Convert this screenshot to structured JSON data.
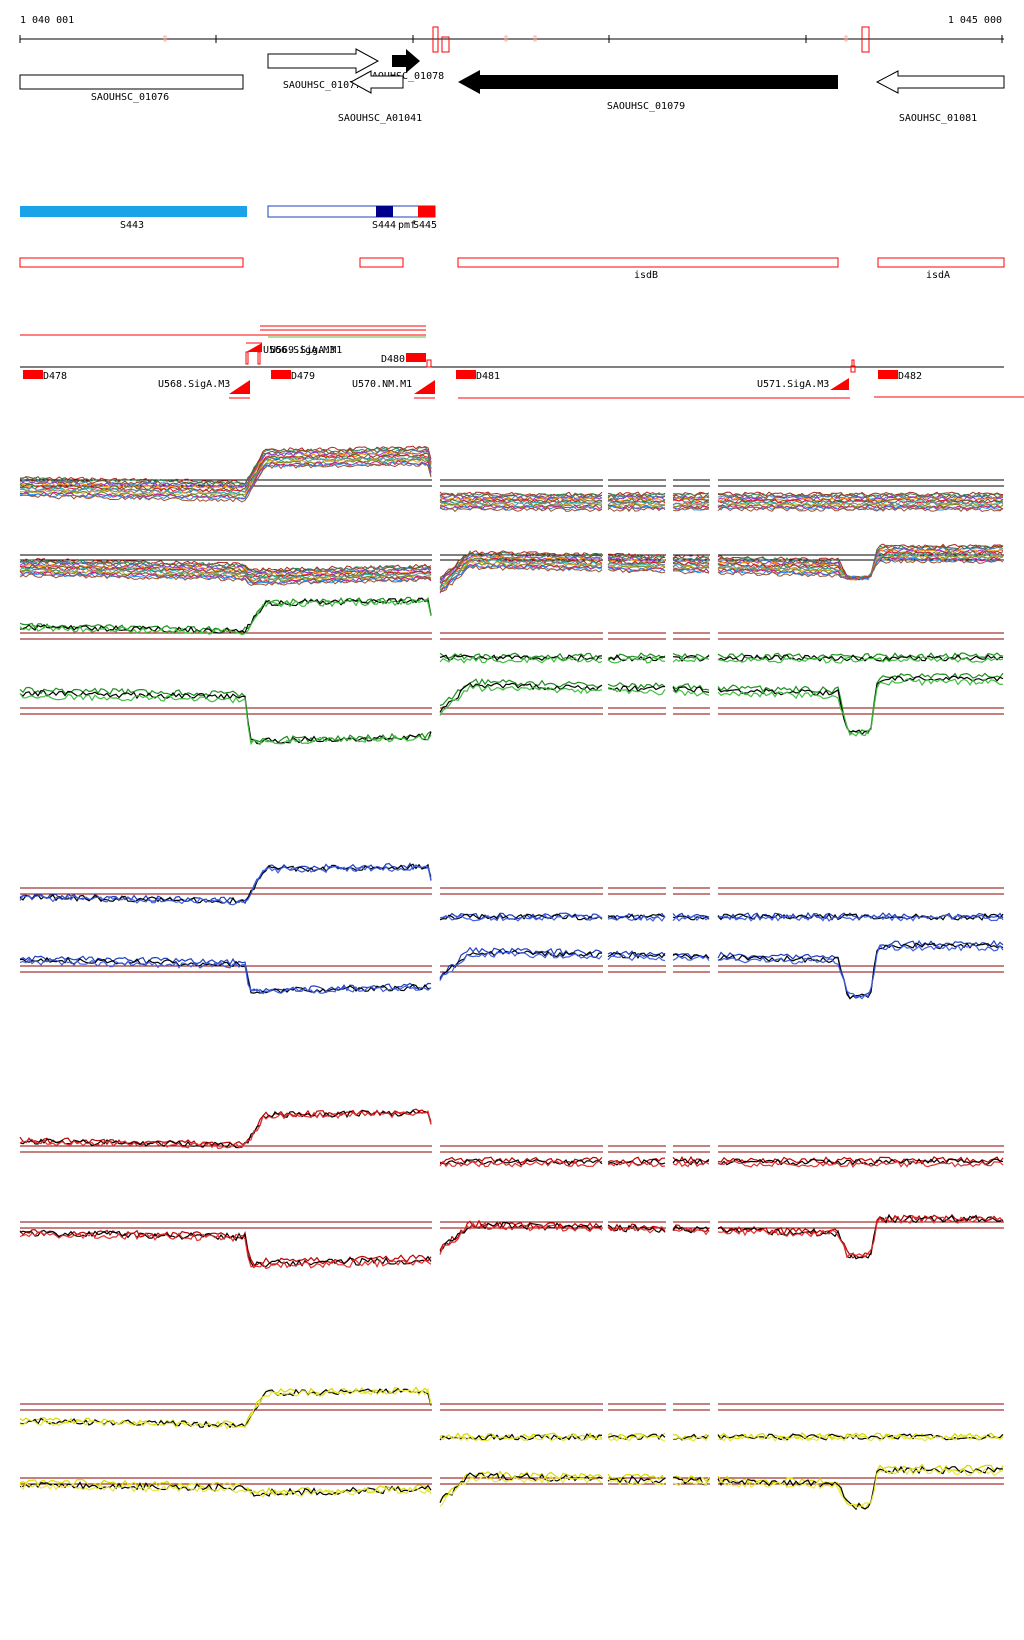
{
  "coordinates": {
    "start": "1 040 001",
    "end": "1 045 000"
  },
  "colors": {
    "gene_fill": "#000000",
    "gene_outline": "#000000",
    "segment_light": "#1aa3e8",
    "segment_dark": "#00008b",
    "segment_red": "#ff0000",
    "feature_outline": "#ff0000",
    "baseline": "#8b0000",
    "green": "#1f8f1f",
    "blue": "#1f3fbf",
    "red": "#c00000",
    "yellow": "#d8d800",
    "black": "#000000"
  },
  "genes": [
    {
      "id": "g1",
      "label": "SAOUHSC_01076",
      "strand": "none",
      "filled": false
    },
    {
      "id": "g2",
      "label": "SAOUHSC_01077",
      "strand": "+",
      "filled": false
    },
    {
      "id": "g3",
      "label": "SAOUHSC_01078",
      "strand": "+",
      "filled": true
    },
    {
      "id": "g4",
      "label": "SAOUHSC_01079",
      "strand": "-",
      "filled": true
    },
    {
      "id": "g5",
      "label": "SAOUHSC_A01041",
      "strand": "-",
      "filled": false
    },
    {
      "id": "g6",
      "label": "SAOUHSC_01081",
      "strand": "-",
      "filled": false
    }
  ],
  "segments": [
    {
      "label": "S443"
    },
    {
      "label": "S444"
    },
    {
      "label": "pmf"
    },
    {
      "label": "S445"
    }
  ],
  "features": [
    {
      "label": ""
    },
    {
      "label": ""
    },
    {
      "label": "isdB"
    },
    {
      "label": "isdA"
    }
  ],
  "sites": [
    {
      "label": "D478"
    },
    {
      "label": "U568.SigA.M3"
    },
    {
      "label": "U566.SigA.M3"
    },
    {
      "label": "U569.SigA.M1"
    },
    {
      "label": "D479"
    },
    {
      "label": "D480"
    },
    {
      "label": "U570.NM.M1"
    },
    {
      "label": "D481"
    },
    {
      "label": "U571.SigA.M3"
    },
    {
      "label": "D482"
    }
  ]
}
